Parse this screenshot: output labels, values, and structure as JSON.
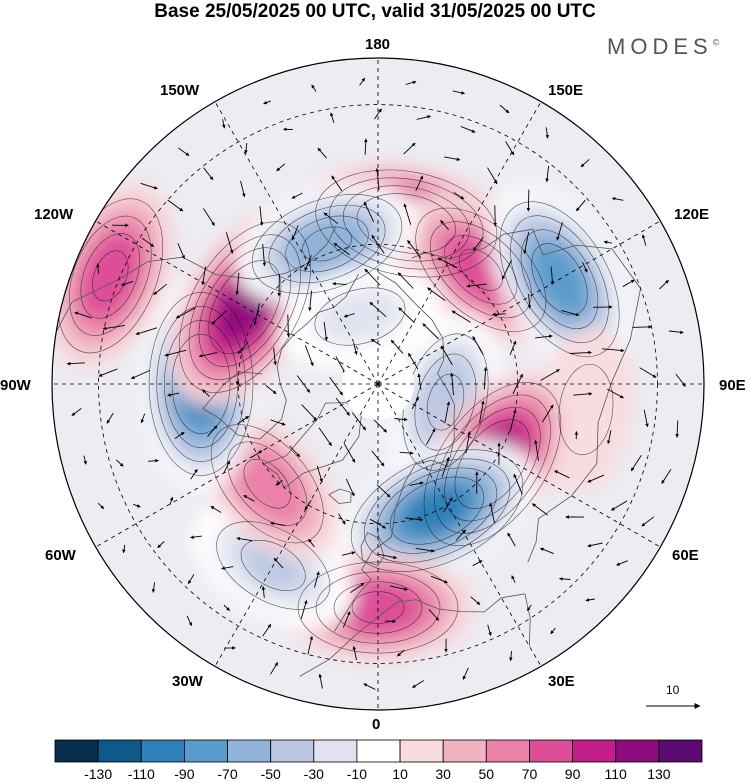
{
  "title": "Base 25/05/2025 00 UTC, valid 31/05/2025 00 UTC",
  "brand": "MODES",
  "brand_mark": "©",
  "longitude_labels": {
    "lon_180": "180",
    "lon_150w": "150W",
    "lon_150e": "150E",
    "lon_120w": "120W",
    "lon_120e": "120E",
    "lon_90w": "90W",
    "lon_90e": "90E",
    "lon_60w": "60W",
    "lon_60e": "60E",
    "lon_30w": "30W",
    "lon_30e": "30E",
    "lon_0": "0"
  },
  "reference_vector": {
    "label": "10",
    "arrow_icon": "arrow-right-icon"
  },
  "colorbar": {
    "colors": [
      "#08304e",
      "#0d5a8a",
      "#2f7fb8",
      "#5a9bcb",
      "#8fb3d9",
      "#bcc8e3",
      "#e1e3f0",
      "#ffffff",
      "#f8dcdf",
      "#f1b2c2",
      "#ea82a9",
      "#dd4e98",
      "#c21e89",
      "#8e0d7e",
      "#5a0a70"
    ],
    "labels": [
      "-130",
      "-110",
      "-90",
      "-70",
      "-50",
      "-30",
      "-10",
      "10",
      "30",
      "50",
      "70",
      "90",
      "110",
      "130"
    ]
  },
  "anomaly_centers": [
    {
      "lon": 170,
      "lat": 55,
      "value": 110
    },
    {
      "lon": 138,
      "lat": 57,
      "value": 70
    },
    {
      "lon": 120,
      "lat": 45,
      "value": -90
    },
    {
      "lon": 75,
      "lat": 75,
      "value": -50
    },
    {
      "lon": 83,
      "lat": 45,
      "value": 20
    },
    {
      "lon": 55,
      "lat": 60,
      "value": 115
    },
    {
      "lon": 25,
      "lat": 60,
      "value": -110
    },
    {
      "lon": 0,
      "lat": 42,
      "value": 80
    },
    {
      "lon": -30,
      "lat": 45,
      "value": -45
    },
    {
      "lon": -48,
      "lat": 58,
      "value": 55
    },
    {
      "lon": -90,
      "lat": 52,
      "value": -110
    },
    {
      "lon": -120,
      "lat": 57,
      "value": 120
    },
    {
      "lon": -112,
      "lat": 28,
      "value": 85
    },
    {
      "lon": -160,
      "lat": 58,
      "value": -70
    },
    {
      "lon": -165,
      "lat": 75,
      "value": -25
    }
  ]
}
